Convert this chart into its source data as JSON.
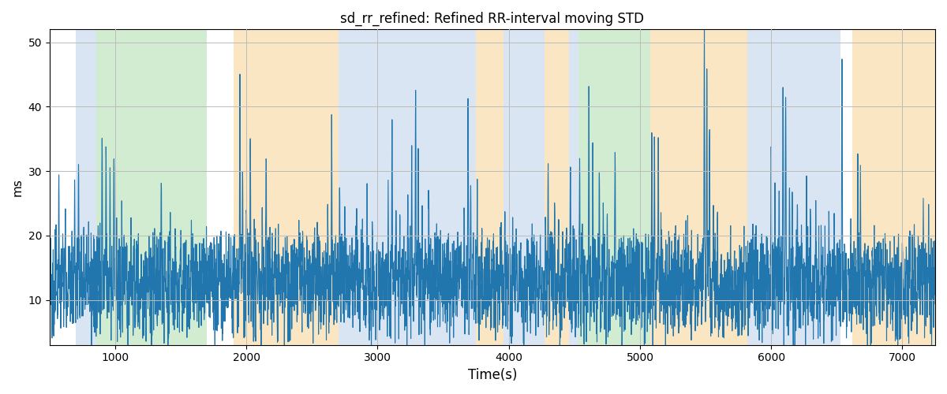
{
  "title": "sd_rr_refined: Refined RR-interval moving STD",
  "xlabel": "Time(s)",
  "ylabel": "ms",
  "xlim": [
    500,
    7250
  ],
  "ylim": [
    3,
    52
  ],
  "yticks": [
    10,
    20,
    30,
    40,
    50
  ],
  "xticks": [
    1000,
    2000,
    3000,
    4000,
    5000,
    6000,
    7000
  ],
  "line_color": "#2176ae",
  "line_width": 0.8,
  "colored_bands": [
    {
      "xmin": 700,
      "xmax": 855,
      "color": "#aec6e8",
      "alpha": 0.45
    },
    {
      "xmin": 855,
      "xmax": 1700,
      "color": "#90d090",
      "alpha": 0.4
    },
    {
      "xmin": 1900,
      "xmax": 2700,
      "color": "#f5c97a",
      "alpha": 0.45
    },
    {
      "xmin": 2700,
      "xmax": 3750,
      "color": "#aec6e8",
      "alpha": 0.45
    },
    {
      "xmin": 3750,
      "xmax": 3960,
      "color": "#f5c97a",
      "alpha": 0.45
    },
    {
      "xmin": 3960,
      "xmax": 4270,
      "color": "#aec6e8",
      "alpha": 0.45
    },
    {
      "xmin": 4270,
      "xmax": 4460,
      "color": "#f5c97a",
      "alpha": 0.45
    },
    {
      "xmin": 4460,
      "xmax": 4530,
      "color": "#aec6e8",
      "alpha": 0.45
    },
    {
      "xmin": 4530,
      "xmax": 5080,
      "color": "#90d090",
      "alpha": 0.4
    },
    {
      "xmin": 5080,
      "xmax": 5820,
      "color": "#f5c97a",
      "alpha": 0.45
    },
    {
      "xmin": 5820,
      "xmax": 6530,
      "color": "#aec6e8",
      "alpha": 0.45
    },
    {
      "xmin": 6620,
      "xmax": 7250,
      "color": "#f5c97a",
      "alpha": 0.45
    }
  ],
  "background_color": "white",
  "grid_color": "#bbbbbb",
  "title_fontsize": 12,
  "n_points": 5000,
  "seed": 42
}
